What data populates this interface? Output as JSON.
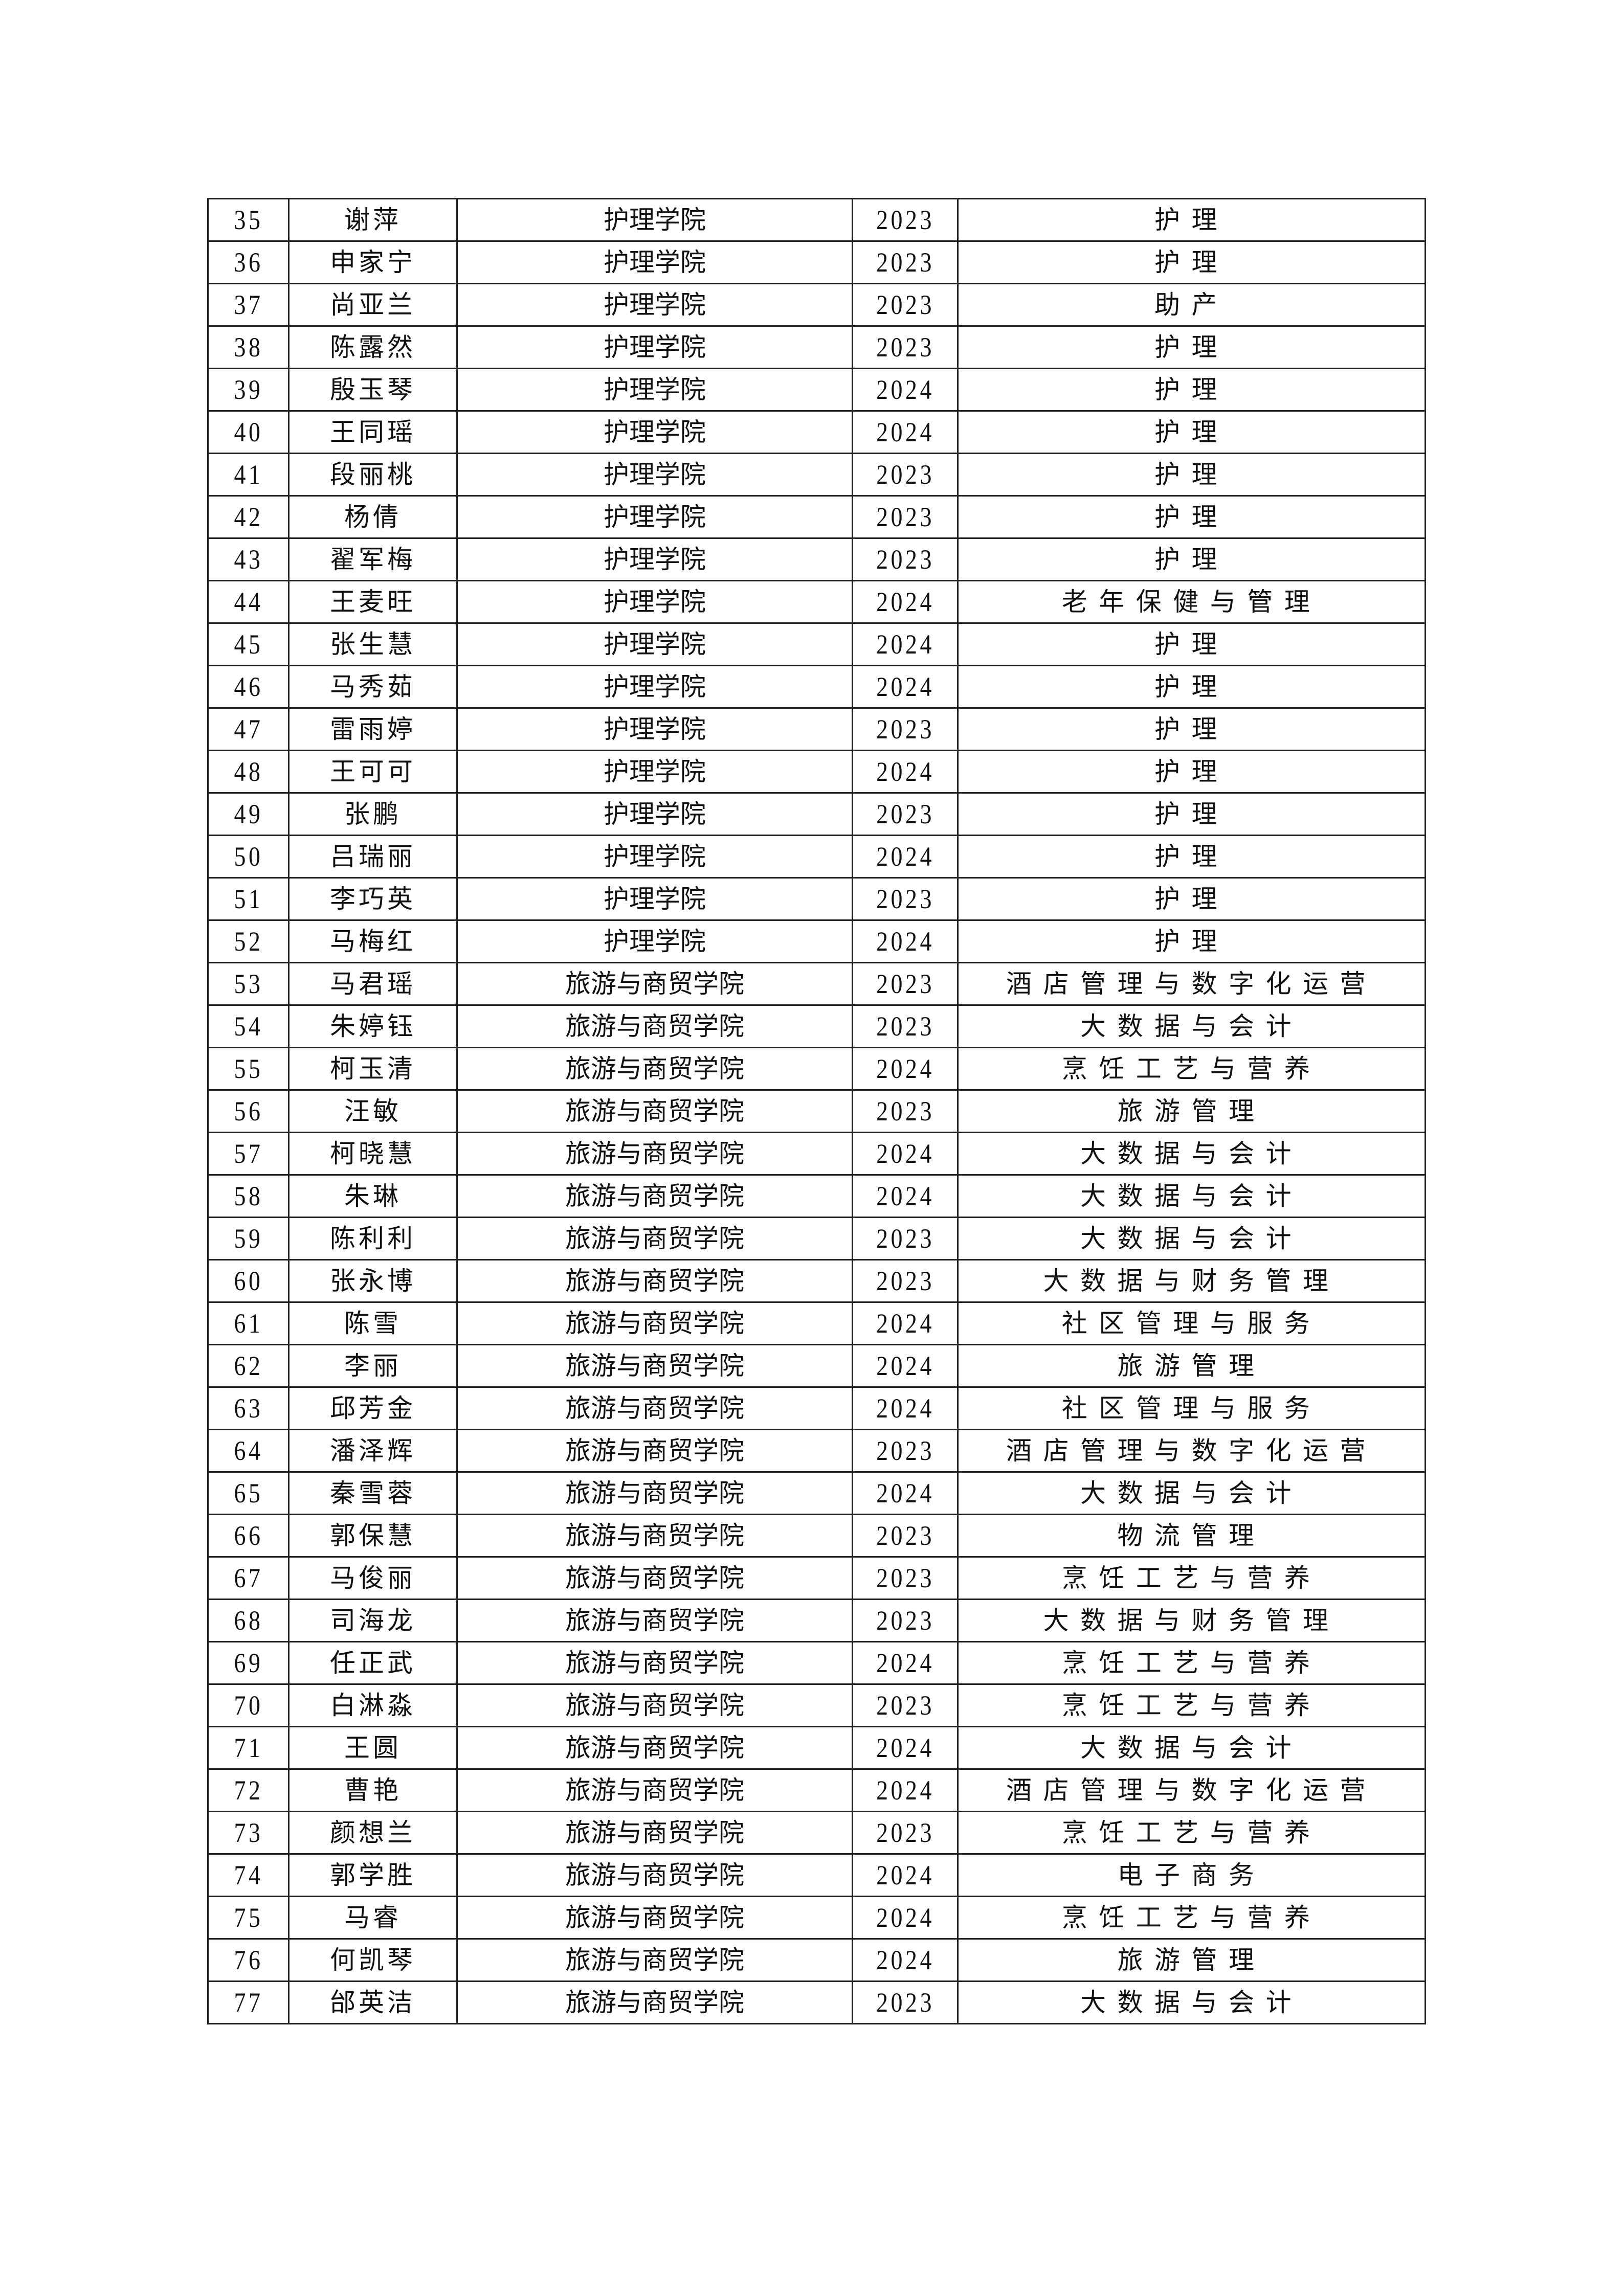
{
  "table": {
    "rows": [
      [
        "35",
        "谢萍",
        "护理学院",
        "2023",
        "护理"
      ],
      [
        "36",
        "申家宁",
        "护理学院",
        "2023",
        "护理"
      ],
      [
        "37",
        "尚亚兰",
        "护理学院",
        "2023",
        "助产"
      ],
      [
        "38",
        "陈露然",
        "护理学院",
        "2023",
        "护理"
      ],
      [
        "39",
        "殷玉琴",
        "护理学院",
        "2024",
        "护理"
      ],
      [
        "40",
        "王同瑶",
        "护理学院",
        "2024",
        "护理"
      ],
      [
        "41",
        "段丽桃",
        "护理学院",
        "2023",
        "护理"
      ],
      [
        "42",
        "杨倩",
        "护理学院",
        "2023",
        "护理"
      ],
      [
        "43",
        "翟军梅",
        "护理学院",
        "2023",
        "护理"
      ],
      [
        "44",
        "王麦旺",
        "护理学院",
        "2024",
        "老年保健与管理"
      ],
      [
        "45",
        "张生慧",
        "护理学院",
        "2024",
        "护理"
      ],
      [
        "46",
        "马秀茹",
        "护理学院",
        "2024",
        "护理"
      ],
      [
        "47",
        "雷雨婷",
        "护理学院",
        "2023",
        "护理"
      ],
      [
        "48",
        "王可可",
        "护理学院",
        "2024",
        "护理"
      ],
      [
        "49",
        "张鹏",
        "护理学院",
        "2023",
        "护理"
      ],
      [
        "50",
        "吕瑞丽",
        "护理学院",
        "2024",
        "护理"
      ],
      [
        "51",
        "李巧英",
        "护理学院",
        "2023",
        "护理"
      ],
      [
        "52",
        "马梅红",
        "护理学院",
        "2024",
        "护理"
      ],
      [
        "53",
        "马君瑶",
        "旅游与商贸学院",
        "2023",
        "酒店管理与数字化运营"
      ],
      [
        "54",
        "朱婷钰",
        "旅游与商贸学院",
        "2023",
        "大数据与会计"
      ],
      [
        "55",
        "柯玉清",
        "旅游与商贸学院",
        "2024",
        "烹饪工艺与营养"
      ],
      [
        "56",
        "汪敏",
        "旅游与商贸学院",
        "2023",
        "旅游管理"
      ],
      [
        "57",
        "柯晓慧",
        "旅游与商贸学院",
        "2024",
        "大数据与会计"
      ],
      [
        "58",
        "朱琳",
        "旅游与商贸学院",
        "2024",
        "大数据与会计"
      ],
      [
        "59",
        "陈利利",
        "旅游与商贸学院",
        "2023",
        "大数据与会计"
      ],
      [
        "60",
        "张永博",
        "旅游与商贸学院",
        "2023",
        "大数据与财务管理"
      ],
      [
        "61",
        "陈雪",
        "旅游与商贸学院",
        "2024",
        "社区管理与服务"
      ],
      [
        "62",
        "李丽",
        "旅游与商贸学院",
        "2024",
        "旅游管理"
      ],
      [
        "63",
        "邱芳金",
        "旅游与商贸学院",
        "2024",
        "社区管理与服务"
      ],
      [
        "64",
        "潘泽辉",
        "旅游与商贸学院",
        "2023",
        "酒店管理与数字化运营"
      ],
      [
        "65",
        "秦雪蓉",
        "旅游与商贸学院",
        "2024",
        "大数据与会计"
      ],
      [
        "66",
        "郭保慧",
        "旅游与商贸学院",
        "2023",
        "物流管理"
      ],
      [
        "67",
        "马俊丽",
        "旅游与商贸学院",
        "2023",
        "烹饪工艺与营养"
      ],
      [
        "68",
        "司海龙",
        "旅游与商贸学院",
        "2023",
        "大数据与财务管理"
      ],
      [
        "69",
        "任正武",
        "旅游与商贸学院",
        "2024",
        "烹饪工艺与营养"
      ],
      [
        "70",
        "白淋淼",
        "旅游与商贸学院",
        "2023",
        "烹饪工艺与营养"
      ],
      [
        "71",
        "王圆",
        "旅游与商贸学院",
        "2024",
        "大数据与会计"
      ],
      [
        "72",
        "曹艳",
        "旅游与商贸学院",
        "2024",
        "酒店管理与数字化运营"
      ],
      [
        "73",
        "颜想兰",
        "旅游与商贸学院",
        "2023",
        "烹饪工艺与营养"
      ],
      [
        "74",
        "郭学胜",
        "旅游与商贸学院",
        "2024",
        "电子商务"
      ],
      [
        "75",
        "马睿",
        "旅游与商贸学院",
        "2024",
        "烹饪工艺与营养"
      ],
      [
        "76",
        "何凯琴",
        "旅游与商贸学院",
        "2024",
        "旅游管理"
      ],
      [
        "77",
        "邰英洁",
        "旅游与商贸学院",
        "2023",
        "大数据与会计"
      ]
    ]
  }
}
